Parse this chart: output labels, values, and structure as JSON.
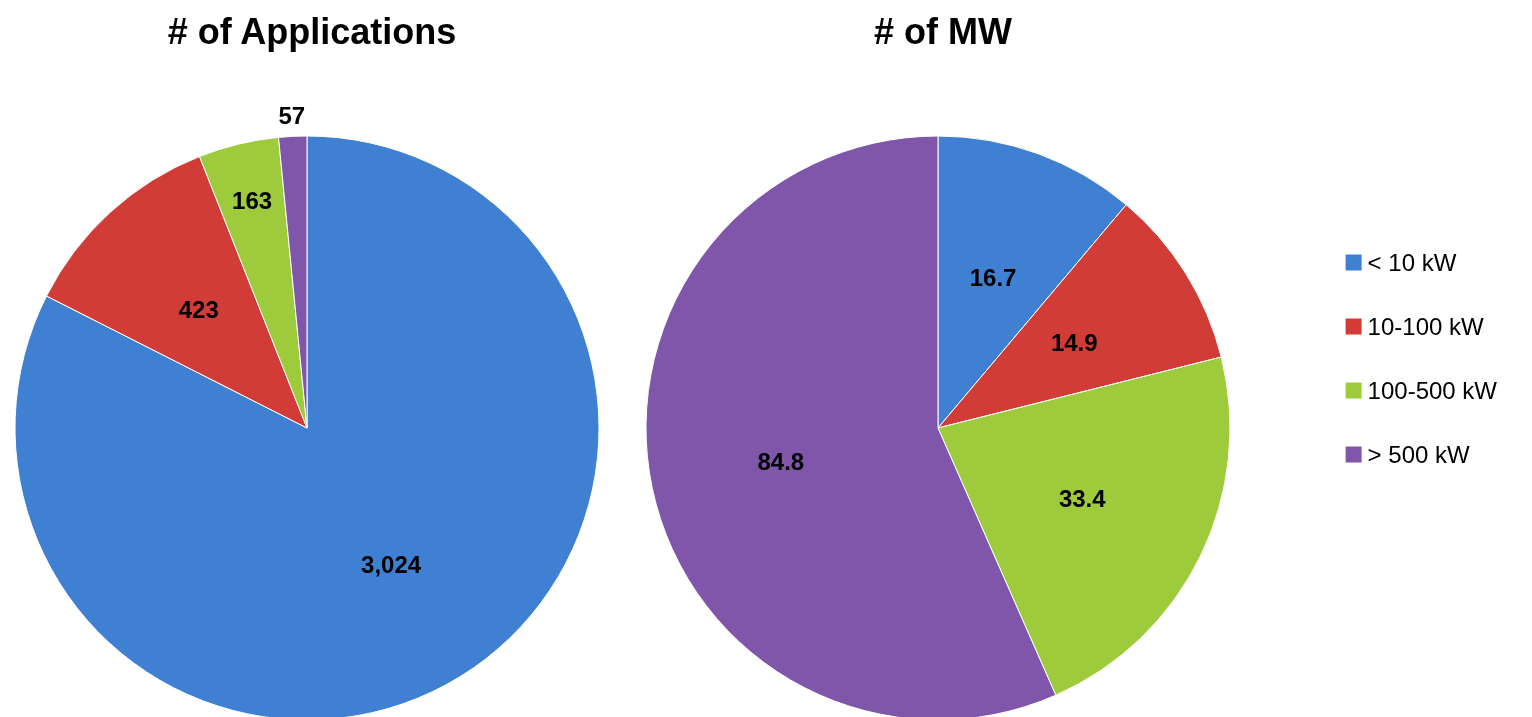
{
  "chart_data": [
    {
      "type": "pie",
      "title": "# of Applications",
      "categories": [
        null,
        null,
        null,
        null
      ],
      "values": [
        3024,
        423,
        163,
        57
      ],
      "colors": [
        "#3f80d2",
        "#d23c37",
        "#9dcb3b",
        "#7f56aa"
      ],
      "value_labels": [
        "3,024",
        "423",
        "163",
        "57"
      ]
    },
    {
      "type": "pie",
      "title": "# of MW",
      "categories": [
        "< 10 kW",
        "10-100 kW",
        "100-500 kW",
        "> 500 kW"
      ],
      "values": [
        16.7,
        14.9,
        33.4,
        84.8
      ],
      "colors": [
        "#3f80d2",
        "#d23c37",
        "#9dcb3b",
        "#7f56aa"
      ],
      "data_labels": true,
      "legend": "right"
    }
  ]
}
